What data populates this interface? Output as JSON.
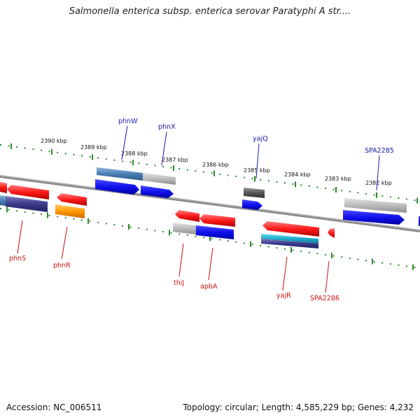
{
  "title": "Salmonella enterica subsp. enterica serovar Paratyphi A str....",
  "footer": {
    "accession": "Accession: NC_006511",
    "summary": "Topology: circular; Length: 4,585,229 bp; Genes: 4,232"
  },
  "colors": {
    "ruler": "#2a8a2a",
    "backbone": "#8a8a8a",
    "top_label": "#1a1aaa",
    "bottom_label": "#cc1111",
    "red": "#ff1a1a",
    "blue": "#1515ee",
    "grey": "#bdbdbd",
    "darkgrey": "#555555",
    "steelblue": "#4a7fb5",
    "navy": "#3a3a8a",
    "orange": "#ff9900",
    "teal": "#22aacc"
  },
  "ruler_labels": [
    {
      "text": "2390 kbp"
    },
    {
      "text": "2389 kbp"
    },
    {
      "text": "2388 kbp"
    },
    {
      "text": "2387 kbp"
    },
    {
      "text": "2386 kbp"
    },
    {
      "text": "2385 kbp"
    },
    {
      "text": "2384 kbp"
    },
    {
      "text": "2383 kbp"
    },
    {
      "text": "2382 kbp"
    }
  ],
  "top_gene_labels": [
    {
      "name": "phnW"
    },
    {
      "name": "phnX"
    },
    {
      "name": "yajQ"
    },
    {
      "name": "SPA2285"
    }
  ],
  "bottom_gene_labels": [
    {
      "name": "phnS"
    },
    {
      "name": "phnR"
    },
    {
      "name": "thiJ"
    },
    {
      "name": "apbA"
    },
    {
      "name": "yajR"
    },
    {
      "name": "SPA2286"
    }
  ]
}
